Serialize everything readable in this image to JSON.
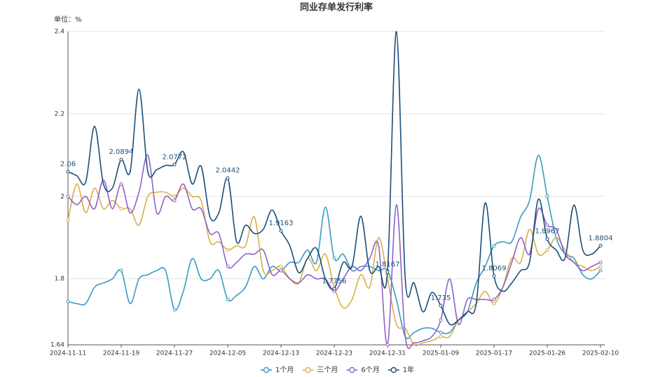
{
  "chart_data": {
    "type": "line",
    "title": "同业存单发行利率",
    "unit_note": "单位：%",
    "categories": [
      "2024-11-11",
      null,
      null,
      null,
      null,
      null,
      "2024-11-19",
      null,
      null,
      null,
      null,
      null,
      "2024-11-27",
      null,
      null,
      null,
      null,
      null,
      "2024-12-05",
      null,
      null,
      null,
      null,
      null,
      "2024-12-13",
      null,
      null,
      null,
      null,
      null,
      "2024-12-23",
      null,
      null,
      null,
      null,
      null,
      "2024-12-31",
      null,
      null,
      null,
      null,
      null,
      "2025-01-09",
      null,
      null,
      null,
      null,
      null,
      "2025-01-17",
      null,
      null,
      null,
      null,
      null,
      "2025-01-26",
      null,
      null,
      null,
      null,
      null,
      "2025-02-10"
    ],
    "ylim": [
      1.64,
      2.4
    ],
    "yticks": [
      1.64,
      1.8,
      2,
      2.2,
      2.4
    ],
    "grid": true,
    "smooth": true,
    "label_every": 6,
    "legend": "bottom",
    "series": [
      {
        "name": "1个月",
        "color": "#3a9bc1",
        "labels": false,
        "values": [
          1.745,
          1.74,
          1.74,
          1.78,
          1.79,
          1.8,
          1.82,
          1.74,
          1.8,
          1.81,
          1.82,
          1.82,
          1.725,
          1.77,
          1.849,
          1.8,
          1.8,
          1.82,
          1.75,
          1.76,
          1.78,
          1.83,
          1.8,
          1.83,
          1.82,
          1.84,
          1.84,
          1.87,
          1.84,
          1.974,
          1.85,
          1.86,
          1.82,
          1.83,
          1.83,
          1.82,
          1.82,
          1.75,
          1.66,
          1.67,
          1.68,
          1.68,
          1.67,
          1.67,
          1.7,
          1.72,
          1.79,
          1.83,
          1.88,
          1.89,
          1.89,
          1.95,
          1.99,
          2.1,
          2.0,
          1.9,
          1.86,
          1.85,
          1.81,
          1.8,
          1.82
        ]
      },
      {
        "name": "三个月",
        "color": "#d9b04a",
        "labels": false,
        "values": [
          1.942,
          2.03,
          1.96,
          2.02,
          1.97,
          1.99,
          1.97,
          1.97,
          1.93,
          2.0,
          2.01,
          2.01,
          2.0,
          2.02,
          2.0,
          1.99,
          1.89,
          1.89,
          1.87,
          1.88,
          1.88,
          1.95,
          1.82,
          1.82,
          1.83,
          1.8,
          1.79,
          1.85,
          1.82,
          1.86,
          1.78,
          1.73,
          1.75,
          1.81,
          1.78,
          1.9,
          1.8,
          1.69,
          1.68,
          1.64,
          1.645,
          1.65,
          1.66,
          1.66,
          1.7,
          1.72,
          1.74,
          1.77,
          1.74,
          1.78,
          1.85,
          1.84,
          1.92,
          1.86,
          1.87,
          1.9,
          1.87,
          1.84,
          1.83,
          1.82,
          1.83
        ]
      },
      {
        "name": "6个月",
        "color": "#9161c8",
        "labels": false,
        "values": [
          2.0,
          1.98,
          2.0,
          1.97,
          2.04,
          1.97,
          2.03,
          1.96,
          2.01,
          2.1,
          1.96,
          2.0,
          1.99,
          2.03,
          1.97,
          1.97,
          1.91,
          1.91,
          1.83,
          1.84,
          1.86,
          1.86,
          1.87,
          1.81,
          1.82,
          1.8,
          1.79,
          1.81,
          1.8,
          1.8,
          1.77,
          1.8,
          1.83,
          1.82,
          1.85,
          1.88,
          1.64,
          1.98,
          1.66,
          1.645,
          1.65,
          1.66,
          1.7,
          1.8,
          1.69,
          1.75,
          1.75,
          1.75,
          1.75,
          1.78,
          1.84,
          1.9,
          1.86,
          1.97,
          1.93,
          1.92,
          1.86,
          1.84,
          1.82,
          1.83,
          1.84
        ]
      },
      {
        "name": "1年",
        "color": "#1b4e79",
        "labels": true,
        "values": [
          2.06,
          2.05,
          2.035,
          2.17,
          2.03,
          2.02,
          2.0894,
          2.06,
          2.26,
          2.06,
          2.065,
          2.075,
          2.0772,
          2.108,
          2.03,
          2.073,
          1.95,
          1.96,
          2.0442,
          1.89,
          1.93,
          1.91,
          1.92,
          1.967,
          1.9163,
          1.88,
          1.815,
          1.85,
          1.874,
          1.8,
          1.7756,
          1.84,
          1.83,
          1.952,
          1.82,
          1.83,
          1.8167,
          2.4,
          1.8,
          1.79,
          1.72,
          1.767,
          1.735,
          1.69,
          1.7,
          1.72,
          1.74,
          1.984,
          1.8069,
          1.77,
          1.79,
          1.82,
          1.84,
          1.993,
          1.8967,
          1.87,
          1.85,
          1.979,
          1.87,
          1.86,
          1.8804
        ]
      }
    ]
  }
}
